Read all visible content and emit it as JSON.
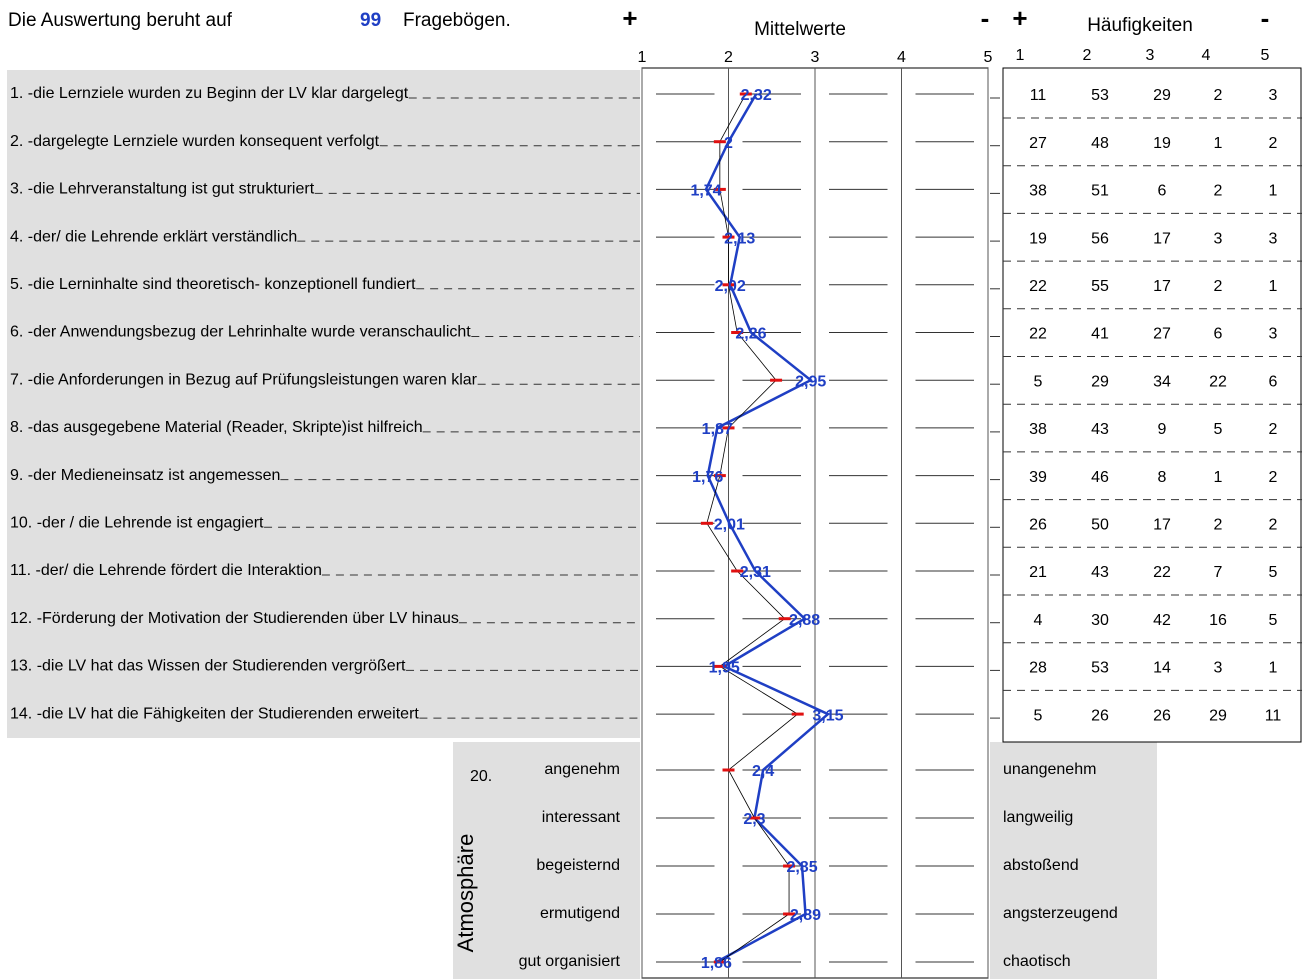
{
  "header": {
    "prefix": "Die Auswertung beruht auf",
    "count": "99",
    "suffix": "Fragebögen."
  },
  "chart_data": {
    "type": "profile",
    "title": "Mittelwerte",
    "plus": "+",
    "minus": "-",
    "xlim": [
      1,
      5
    ],
    "xticks": [
      1,
      2,
      3,
      4,
      5
    ],
    "grid": true,
    "categories": [
      "1. -die Lernziele wurden zu Beginn der LV klar dargelegt",
      "2. -dargelegte Lernziele wurden  konsequent verfolgt",
      "3. -die Lehrveranstaltung ist gut strukturiert",
      "4. -der/ die Lehrende erklärt verständlich",
      "5. -die  Lerninhalte sind theoretisch- konzeptionell fundiert",
      "6. -der Anwendungsbezug der Lehrinhalte wurde veranschaulicht",
      "7. -die Anforderungen in Bezug auf Prüfungsleistungen waren klar",
      "8. -das ausgegebene Material (Reader, Skripte)ist hilfreich",
      "9. -der Medieneinsatz ist angemessen",
      "10. -der / die Lehrende ist engagiert",
      "11. -der/ die Lehrende fördert die Interaktion",
      "12. -Förderung der Motivation der Studierenden  über LV hinaus",
      "13. -die LV hat das Wissen der Studierenden vergrößert",
      "14. -die LV hat die Fähigkeiten der Studierenden erweitert",
      "angenehm",
      "interessant",
      "begeisternd",
      "ermutigend",
      "gut organisiert"
    ],
    "group_number": "20.",
    "group_label": "Atmosphäre",
    "poles": [
      "unangenehm",
      "langweilig",
      "abstoßend",
      "angsterzeugend",
      "chaotisch"
    ],
    "series": [
      {
        "color": "#1f3fc4",
        "values": [
          2.32,
          2,
          1.74,
          2.13,
          2.02,
          2.26,
          2.95,
          1.87,
          1.76,
          2.01,
          2.31,
          2.88,
          1.95,
          3.15,
          2.4,
          2.3,
          2.85,
          2.89,
          1.86
        ],
        "value_labels": [
          "2,32",
          "2",
          "1,74",
          "2,13",
          "2,02",
          "2,26",
          "2,95",
          "1,87",
          "1,76",
          "2,01",
          "2,31",
          "2,88",
          "1,95",
          "3,15",
          "2,4",
          "2,3",
          "2,85",
          "2,89",
          "1,86"
        ]
      },
      {
        "color": "#000000",
        "marker_color": "#e01010",
        "values": [
          2.2,
          1.9,
          1.9,
          2.0,
          2.0,
          2.1,
          2.55,
          2.0,
          1.9,
          1.75,
          2.1,
          2.65,
          1.9,
          2.8,
          2.0,
          2.3,
          2.7,
          2.7,
          1.9
        ]
      }
    ]
  },
  "table": {
    "title": "Häufigkeiten",
    "plus": "+",
    "minus": "-",
    "columns": [
      "1",
      "2",
      "3",
      "4",
      "5"
    ],
    "rows": [
      [
        "11",
        "53",
        "29",
        "2",
        "3"
      ],
      [
        "27",
        "48",
        "19",
        "1",
        "2"
      ],
      [
        "38",
        "51",
        "6",
        "2",
        "1"
      ],
      [
        "19",
        "56",
        "17",
        "3",
        "3"
      ],
      [
        "22",
        "55",
        "17",
        "2",
        "1"
      ],
      [
        "22",
        "41",
        "27",
        "6",
        "3"
      ],
      [
        "5",
        "29",
        "34",
        "22",
        "6"
      ],
      [
        "38",
        "43",
        "9",
        "5",
        "2"
      ],
      [
        "39",
        "46",
        "8",
        "1",
        "2"
      ],
      [
        "26",
        "50",
        "17",
        "2",
        "2"
      ],
      [
        "21",
        "43",
        "22",
        "7",
        "5"
      ],
      [
        "4",
        "30",
        "42",
        "16",
        "5"
      ],
      [
        "28",
        "53",
        "14",
        "3",
        "1"
      ],
      [
        "5",
        "26",
        "26",
        "29",
        "11"
      ]
    ]
  }
}
